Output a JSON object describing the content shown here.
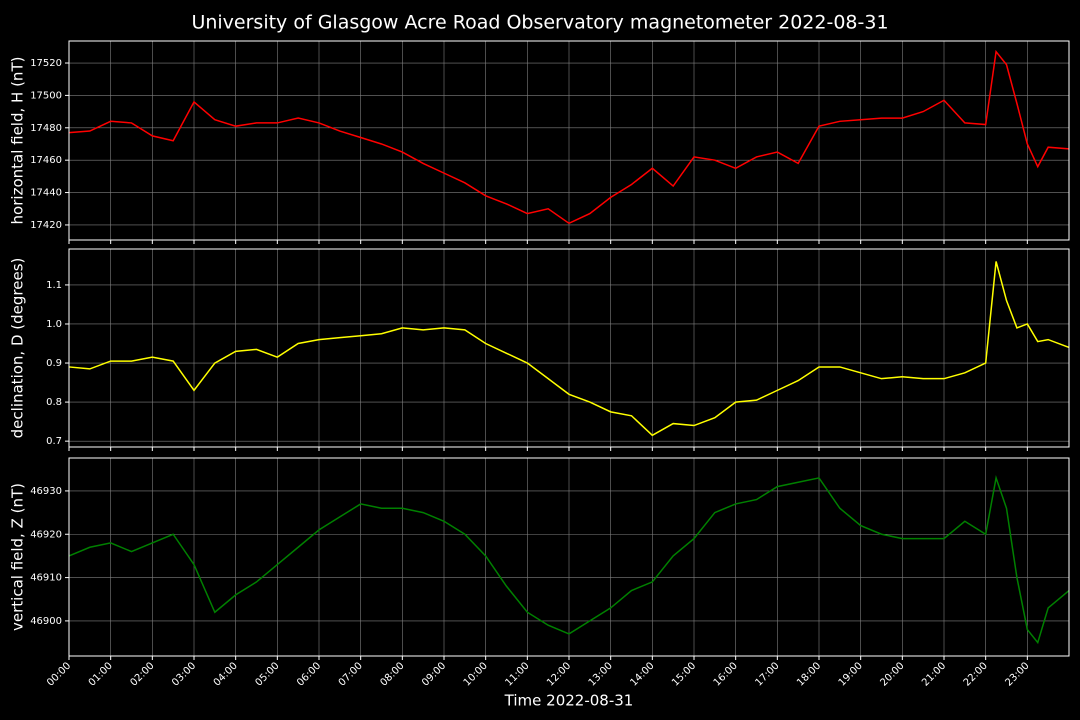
{
  "title": "University of Glasgow Acre Road Observatory magnetometer 2022-08-31",
  "chart_data": [
    {
      "type": "line",
      "ylabel": "horizontal field, H (nT)",
      "color": "#ff0000",
      "grid": true,
      "x": [
        0,
        0.5,
        1,
        1.5,
        2,
        2.5,
        3,
        3.5,
        4,
        4.5,
        5,
        5.5,
        6,
        6.5,
        7,
        7.5,
        8,
        8.5,
        9,
        9.5,
        10,
        10.5,
        11,
        11.5,
        12,
        12.5,
        13,
        13.5,
        14,
        14.5,
        15,
        15.5,
        16,
        16.5,
        17,
        17.5,
        18,
        18.5,
        19,
        19.5,
        20,
        20.5,
        21,
        21.5,
        22,
        22.25,
        22.5,
        22.75,
        23,
        23.25,
        23.5,
        24
      ],
      "values": [
        17477,
        17478,
        17484,
        17483,
        17475,
        17472,
        17496,
        17485,
        17481,
        17483,
        17483,
        17486,
        17483,
        17478,
        17474,
        17470,
        17465,
        17458,
        17452,
        17446,
        17438,
        17433,
        17427,
        17430,
        17421,
        17427,
        17437,
        17445,
        17455,
        17444,
        17462,
        17460,
        17455,
        17462,
        17465,
        17458,
        17481,
        17484,
        17485,
        17486,
        17486,
        17490,
        17497,
        17483,
        17482,
        17527,
        17519,
        17495,
        17470,
        17456,
        17468,
        17467
      ],
      "xlim": [
        0,
        24
      ],
      "xticks": [
        0,
        1,
        2,
        3,
        4,
        5,
        6,
        7,
        8,
        9,
        10,
        11,
        12,
        13,
        14,
        15,
        16,
        17,
        18,
        19,
        20,
        21,
        22,
        23
      ],
      "ylim": [
        17410.7,
        17533.6
      ],
      "yticks": [
        17420,
        17440,
        17460,
        17480,
        17500,
        17520
      ]
    },
    {
      "type": "line",
      "ylabel": "declination, D (degrees)",
      "color": "#ffff00",
      "grid": true,
      "x": [
        0,
        0.5,
        1,
        1.5,
        2,
        2.5,
        3,
        3.5,
        4,
        4.5,
        5,
        5.5,
        6,
        6.5,
        7,
        7.5,
        8,
        8.5,
        9,
        9.5,
        10,
        10.5,
        11,
        11.5,
        12,
        12.5,
        13,
        13.5,
        14,
        14.5,
        15,
        15.5,
        16,
        16.5,
        17,
        17.5,
        18,
        18.5,
        19,
        19.5,
        20,
        20.5,
        21,
        21.5,
        22,
        22.25,
        22.5,
        22.75,
        23,
        23.25,
        23.5,
        24
      ],
      "values": [
        0.89,
        0.885,
        0.905,
        0.905,
        0.915,
        0.905,
        0.83,
        0.9,
        0.93,
        0.935,
        0.915,
        0.95,
        0.96,
        0.965,
        0.97,
        0.975,
        0.99,
        0.985,
        0.99,
        0.985,
        0.95,
        0.925,
        0.9,
        0.86,
        0.82,
        0.8,
        0.775,
        0.765,
        0.715,
        0.745,
        0.74,
        0.76,
        0.8,
        0.805,
        0.83,
        0.855,
        0.89,
        0.89,
        0.875,
        0.86,
        0.865,
        0.86,
        0.86,
        0.875,
        0.9,
        1.16,
        1.06,
        0.99,
        1.0,
        0.955,
        0.96,
        0.94
      ],
      "xlim": [
        0,
        24
      ],
      "xticks": [
        0,
        1,
        2,
        3,
        4,
        5,
        6,
        7,
        8,
        9,
        10,
        11,
        12,
        13,
        14,
        15,
        16,
        17,
        18,
        19,
        20,
        21,
        22,
        23
      ],
      "ylim": [
        0.685,
        1.192
      ],
      "yticks": [
        0.7,
        0.8,
        0.9,
        {
          "value": 1,
          "label": "1.0"
        },
        1.1
      ]
    },
    {
      "type": "line",
      "ylabel": "vertical field, Z (nT)",
      "xlabel": "Time 2022-08-31",
      "color": "#008000",
      "grid": true,
      "x": [
        0,
        0.5,
        1,
        1.5,
        2,
        2.5,
        3,
        3.5,
        4,
        4.5,
        5,
        5.5,
        6,
        6.5,
        7,
        7.5,
        8,
        8.5,
        9,
        9.5,
        10,
        10.5,
        11,
        11.5,
        12,
        12.5,
        13,
        13.5,
        14,
        14.5,
        15,
        15.5,
        16,
        16.5,
        17,
        17.5,
        18,
        18.5,
        19,
        19.5,
        20,
        20.5,
        21,
        21.5,
        22,
        22.25,
        22.5,
        22.75,
        23,
        23.25,
        23.5,
        24
      ],
      "values": [
        46915,
        46917,
        46918,
        46916,
        46918,
        46920,
        46913,
        46902,
        46906,
        46909,
        46913,
        46917,
        46921,
        46924,
        46927,
        46926,
        46926,
        46925,
        46923,
        46920,
        46915,
        46908,
        46902,
        46899,
        46897,
        46900,
        46903,
        46907,
        46909,
        46915,
        46919,
        46925,
        46927,
        46928,
        46931,
        46932,
        46933,
        46926,
        46922,
        46920,
        46919,
        46919,
        46919,
        46923,
        46920,
        46933,
        46926,
        46910,
        46898,
        46895,
        46903,
        46907
      ],
      "xlim": [
        0,
        24
      ],
      "xticks": [
        {
          "value": 0,
          "label": "00:00"
        },
        {
          "value": 1,
          "label": "01:00"
        },
        {
          "value": 2,
          "label": "02:00"
        },
        {
          "value": 3,
          "label": "03:00"
        },
        {
          "value": 4,
          "label": "04:00"
        },
        {
          "value": 5,
          "label": "05:00"
        },
        {
          "value": 6,
          "label": "06:00"
        },
        {
          "value": 7,
          "label": "07:00"
        },
        {
          "value": 8,
          "label": "08:00"
        },
        {
          "value": 9,
          "label": "09:00"
        },
        {
          "value": 10,
          "label": "10:00"
        },
        {
          "value": 11,
          "label": "11:00"
        },
        {
          "value": 12,
          "label": "12:00"
        },
        {
          "value": 13,
          "label": "13:00"
        },
        {
          "value": 14,
          "label": "14:00"
        },
        {
          "value": 15,
          "label": "15:00"
        },
        {
          "value": 16,
          "label": "16:00"
        },
        {
          "value": 17,
          "label": "17:00"
        },
        {
          "value": 18,
          "label": "18:00"
        },
        {
          "value": 19,
          "label": "19:00"
        },
        {
          "value": 20,
          "label": "20:00"
        },
        {
          "value": 21,
          "label": "21:00"
        },
        {
          "value": 22,
          "label": "22:00"
        },
        {
          "value": 23,
          "label": "23:00"
        }
      ],
      "ylim": [
        46891.9,
        46937.6
      ],
      "yticks": [
        46900,
        46910,
        46920,
        46930
      ]
    }
  ]
}
